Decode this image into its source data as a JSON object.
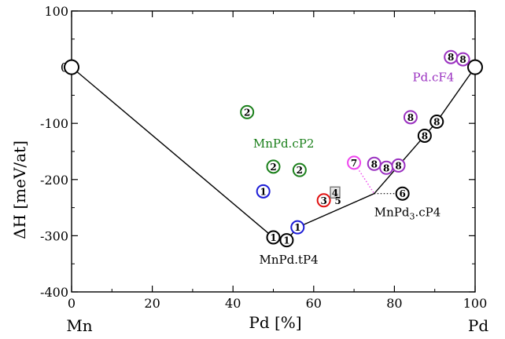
{
  "chart_data": {
    "type": "scatter",
    "title": "",
    "xlabel": "Pd  [%]",
    "ylabel": "ΔH  [meV/at]",
    "xlim": [
      0,
      100
    ],
    "ylim": [
      -400,
      100
    ],
    "xticks": [
      0,
      20,
      40,
      60,
      80,
      100
    ],
    "yticks": [
      -400,
      -300,
      -200,
      -100,
      0,
      100
    ],
    "xtick_labels": [
      "0",
      "20",
      "40",
      "60",
      "80",
      "100"
    ],
    "ytick_labels": [
      "-400",
      "-300",
      "-200",
      "-100",
      "0",
      "100"
    ],
    "end_labels": {
      "left": "Mn",
      "right": "Pd"
    },
    "grid": false,
    "colors": {
      "black": "#000000",
      "green": "#1a7f1a",
      "blue": "#1c1cd6",
      "red": "#e01010",
      "purple": "#9a30c0",
      "magenta": "#ee44ee",
      "gray": "#777777"
    },
    "hull": [
      [
        0,
        0
      ],
      [
        50,
        -303
      ],
      [
        53.3,
        -308
      ],
      [
        56,
        -285
      ],
      [
        75,
        -225
      ],
      [
        87.5,
        -122
      ],
      [
        90.5,
        -97
      ],
      [
        100,
        0
      ]
    ],
    "tie_line": [
      [
        75,
        -225
      ],
      [
        82,
        -225
      ]
    ],
    "dotted_line": [
      [
        70,
        -170
      ],
      [
        75,
        -225
      ]
    ],
    "points": [
      {
        "x": 0,
        "y": 0,
        "label": "",
        "color": "black",
        "shape": "circle",
        "size": "large"
      },
      {
        "x": 100,
        "y": 0,
        "label": "",
        "color": "black",
        "shape": "circle",
        "size": "large"
      },
      {
        "x": 50,
        "y": -303,
        "label": "1",
        "color": "black",
        "shape": "circle"
      },
      {
        "x": 53.3,
        "y": -308,
        "label": "1",
        "color": "black",
        "shape": "circle"
      },
      {
        "x": 56,
        "y": -285,
        "label": "1",
        "color": "blue",
        "shape": "circle"
      },
      {
        "x": 47.5,
        "y": -221,
        "label": "1",
        "color": "blue",
        "shape": "circle"
      },
      {
        "x": 43.5,
        "y": -80,
        "label": "2",
        "color": "green",
        "shape": "circle"
      },
      {
        "x": 50,
        "y": -177,
        "label": "2",
        "color": "green",
        "shape": "circle"
      },
      {
        "x": 56.5,
        "y": -183,
        "label": "2",
        "color": "green",
        "shape": "circle"
      },
      {
        "x": 62.5,
        "y": -237,
        "label": "3",
        "color": "red",
        "shape": "circle"
      },
      {
        "x": 65.3,
        "y": -223,
        "label": "4",
        "color": "gray",
        "shape": "square"
      },
      {
        "x": 66,
        "y": -237,
        "label": "5",
        "color": "black",
        "shape": "none"
      },
      {
        "x": 82,
        "y": -225,
        "label": "6",
        "color": "black",
        "shape": "circle"
      },
      {
        "x": 70,
        "y": -170,
        "label": "7",
        "color": "magenta",
        "shape": "circle"
      },
      {
        "x": 75,
        "y": -172,
        "label": "8",
        "color": "purple",
        "shape": "circle"
      },
      {
        "x": 78,
        "y": -179,
        "label": "8",
        "color": "purple",
        "shape": "circle"
      },
      {
        "x": 81,
        "y": -175,
        "label": "8",
        "color": "purple",
        "shape": "circle"
      },
      {
        "x": 84,
        "y": -89,
        "label": "8",
        "color": "purple",
        "shape": "circle"
      },
      {
        "x": 87.5,
        "y": -122,
        "label": "8",
        "color": "black",
        "shape": "circle"
      },
      {
        "x": 90.5,
        "y": -97,
        "label": "8",
        "color": "black",
        "shape": "circle"
      },
      {
        "x": 94,
        "y": 18,
        "label": "8",
        "color": "purple",
        "shape": "circle"
      },
      {
        "x": 97,
        "y": 14,
        "label": "8",
        "color": "purple",
        "shape": "circle"
      }
    ],
    "annotations": [
      {
        "text": "MnPd.cP2",
        "sub": "",
        "after": "",
        "x": 45,
        "y": -143,
        "color": "green"
      },
      {
        "text": "MnPd",
        "sub": "3",
        "after": ".cP4",
        "x": 75,
        "y": -265,
        "color": "black"
      },
      {
        "text": "MnPd.tP4",
        "sub": "",
        "after": "",
        "x": 46.5,
        "y": -350,
        "color": "black"
      },
      {
        "text": "Pd.cF4",
        "sub": "",
        "after": "",
        "x": 84.5,
        "y": -25,
        "color": "purple"
      }
    ]
  }
}
